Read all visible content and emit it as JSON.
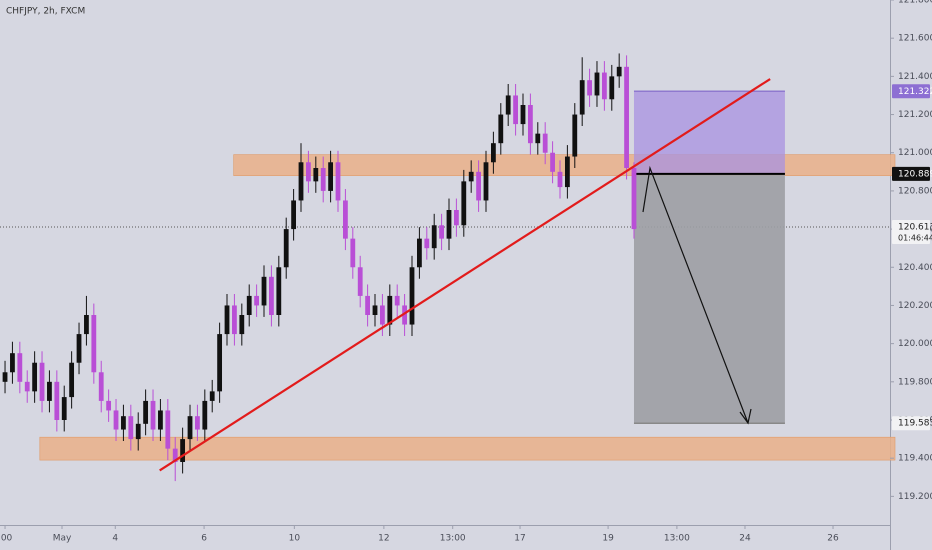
{
  "chart_data": {
    "type": "candlestick",
    "title": "CHFJPY, 2h, FXCM",
    "bull_color": "#111111",
    "bear_color": "#b94fd6",
    "open": [
      119.8,
      119.85,
      119.95,
      119.8,
      119.75,
      119.9,
      119.7,
      119.8,
      119.6,
      119.72,
      119.9,
      120.05,
      120.15,
      119.85,
      119.7,
      119.65,
      119.55,
      119.62,
      119.5,
      119.58,
      119.7,
      119.55,
      119.65,
      119.45,
      119.38,
      119.5,
      119.62,
      119.55,
      119.7,
      119.75,
      120.05,
      120.2,
      120.05,
      120.15,
      120.25,
      120.2,
      120.35,
      120.15,
      120.4,
      120.6,
      120.75,
      120.95,
      120.85,
      120.92,
      120.8,
      120.95,
      120.75,
      120.55,
      120.4,
      120.25,
      120.15,
      120.2,
      120.1,
      120.25,
      120.2,
      120.1,
      120.4,
      120.55,
      120.5,
      120.62,
      120.55,
      120.7,
      120.62,
      120.85,
      120.9,
      120.75,
      120.95,
      121.05,
      121.2,
      121.3,
      121.15,
      121.25,
      121.05,
      121.1,
      121.0,
      120.9,
      120.82,
      120.98,
      121.2,
      121.38,
      121.3,
      121.42,
      121.28,
      121.4,
      121.45,
      120.92
    ],
    "high": [
      119.91,
      120.01,
      120.01,
      119.86,
      119.96,
      119.96,
      119.86,
      119.86,
      119.78,
      119.96,
      120.11,
      120.25,
      120.21,
      119.91,
      119.76,
      119.71,
      119.68,
      119.68,
      119.64,
      119.76,
      119.76,
      119.71,
      119.71,
      119.51,
      119.56,
      119.68,
      119.68,
      119.76,
      119.81,
      120.11,
      120.26,
      120.26,
      120.21,
      120.31,
      120.31,
      120.41,
      120.41,
      120.46,
      120.66,
      120.81,
      121.05,
      121.01,
      120.98,
      120.98,
      121.01,
      121.01,
      120.81,
      120.61,
      120.46,
      120.31,
      120.26,
      120.26,
      120.31,
      120.31,
      120.26,
      120.46,
      120.61,
      120.61,
      120.68,
      120.68,
      120.76,
      120.76,
      120.91,
      120.96,
      120.96,
      121.01,
      121.11,
      121.26,
      121.36,
      121.36,
      121.31,
      121.31,
      121.16,
      121.16,
      121.06,
      120.96,
      121.04,
      121.26,
      121.5,
      121.44,
      121.48,
      121.48,
      121.46,
      121.52,
      121.51,
      120.95
    ],
    "low": [
      119.74,
      119.79,
      119.74,
      119.69,
      119.69,
      119.64,
      119.64,
      119.54,
      119.54,
      119.66,
      119.84,
      119.99,
      119.79,
      119.64,
      119.59,
      119.49,
      119.49,
      119.44,
      119.44,
      119.52,
      119.49,
      119.49,
      119.39,
      119.28,
      119.32,
      119.44,
      119.49,
      119.49,
      119.64,
      119.69,
      119.99,
      119.99,
      119.99,
      120.09,
      120.14,
      120.14,
      120.09,
      120.09,
      120.34,
      120.54,
      120.69,
      120.79,
      120.79,
      120.74,
      120.74,
      120.69,
      120.49,
      120.34,
      120.19,
      120.09,
      120.09,
      120.04,
      120.04,
      120.14,
      120.04,
      120.04,
      120.34,
      120.44,
      120.44,
      120.49,
      120.49,
      120.56,
      120.56,
      120.79,
      120.69,
      120.69,
      120.89,
      120.99,
      121.14,
      121.09,
      121.09,
      120.99,
      120.99,
      120.94,
      120.84,
      120.76,
      120.76,
      120.92,
      121.14,
      121.24,
      121.24,
      121.22,
      121.22,
      121.34,
      120.86,
      120.55
    ],
    "close": [
      119.85,
      119.95,
      119.8,
      119.75,
      119.9,
      119.7,
      119.8,
      119.6,
      119.72,
      119.9,
      120.05,
      120.15,
      119.85,
      119.7,
      119.65,
      119.55,
      119.62,
      119.5,
      119.58,
      119.7,
      119.55,
      119.65,
      119.45,
      119.38,
      119.5,
      119.62,
      119.55,
      119.7,
      119.75,
      120.05,
      120.2,
      120.05,
      120.15,
      120.25,
      120.2,
      120.35,
      120.15,
      120.4,
      120.6,
      120.75,
      120.95,
      120.85,
      120.92,
      120.8,
      120.95,
      120.75,
      120.55,
      120.4,
      120.25,
      120.15,
      120.2,
      120.1,
      120.25,
      120.2,
      120.1,
      120.4,
      120.55,
      120.5,
      120.62,
      120.55,
      120.7,
      120.62,
      120.85,
      120.9,
      120.75,
      120.95,
      121.05,
      121.2,
      121.3,
      121.15,
      121.25,
      121.05,
      121.1,
      121.0,
      120.9,
      120.82,
      120.98,
      121.2,
      121.38,
      121.3,
      121.42,
      121.28,
      121.4,
      121.45,
      120.92,
      120.6
    ],
    "xlim": [
      -0.68,
      119.6
    ],
    "xticks": [
      {
        "value": 0,
        "label": ":00"
      },
      {
        "value": 7.7,
        "label": "May"
      },
      {
        "value": 14.9,
        "label": "4"
      },
      {
        "value": 26.9,
        "label": "6"
      },
      {
        "value": 39.1,
        "label": "10"
      },
      {
        "value": 51.2,
        "label": "12"
      },
      {
        "value": 60.5,
        "label": "13:00"
      },
      {
        "value": 69.6,
        "label": "17"
      },
      {
        "value": 81.5,
        "label": "19"
      },
      {
        "value": 90.8,
        "label": "13:00"
      },
      {
        "value": 100,
        "label": "24"
      },
      {
        "value": 111.9,
        "label": "26"
      }
    ],
    "ylim": [
      119.05,
      121.8
    ],
    "yticks": [
      {
        "value": 119.2,
        "label": "119.200"
      },
      {
        "value": 119.4,
        "label": "119.400"
      },
      {
        "value": 119.6,
        "label": "119.600"
      },
      {
        "value": 119.8,
        "label": "119.800"
      },
      {
        "value": 120,
        "label": "120.000"
      },
      {
        "value": 120.2,
        "label": "120.200"
      },
      {
        "value": 120.4,
        "label": "120.400"
      },
      {
        "value": 120.6,
        "label": "120.600"
      },
      {
        "value": 120.8,
        "label": "120.800"
      },
      {
        "value": 121,
        "label": "121.000"
      },
      {
        "value": 121.2,
        "label": "121.200"
      },
      {
        "value": 121.4,
        "label": "121.400"
      },
      {
        "value": 121.6,
        "label": "121.600"
      },
      {
        "value": 121.8,
        "label": "121.800"
      }
    ],
    "zone_color": "#eab088",
    "zones": [
      {
        "x": [
          30.9,
          119.6
        ],
        "y": [
          120.88,
          120.99
        ]
      },
      {
        "x": [
          4.7,
          119.6
        ],
        "y": [
          119.39,
          119.51
        ]
      }
    ],
    "trendline": {
      "color": "#e21b1b",
      "x": [
        20.9,
        103.4
      ],
      "y": [
        119.336,
        121.386
      ]
    },
    "position": {
      "x": [
        85,
        105.4
      ],
      "stop": 121.322,
      "entry": 120.889,
      "target": 119.583
    },
    "last_price": 120.611,
    "countdown": "01:46:44"
  }
}
